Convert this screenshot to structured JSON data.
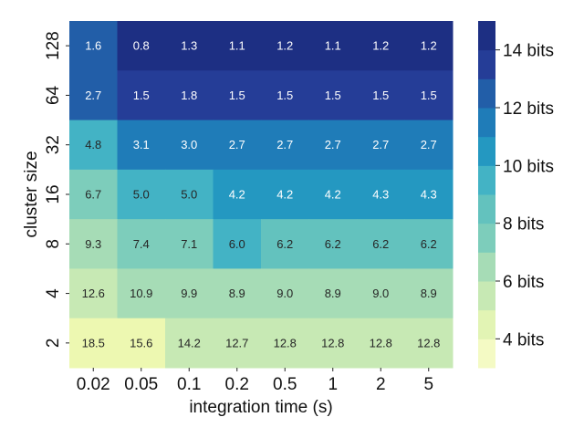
{
  "chart_data": {
    "type": "heatmap",
    "xlabel": "integration time (s)",
    "ylabel": "cluster size",
    "x_categories": [
      "0.02",
      "0.05",
      "0.1",
      "0.2",
      "0.5",
      "1",
      "2",
      "5"
    ],
    "y_categories": [
      "128",
      "64",
      "32",
      "16",
      "8",
      "4",
      "2"
    ],
    "values": [
      [
        1.6,
        0.8,
        1.3,
        1.1,
        1.2,
        1.1,
        1.2,
        1.2
      ],
      [
        2.7,
        1.5,
        1.8,
        1.5,
        1.5,
        1.5,
        1.5,
        1.5
      ],
      [
        4.8,
        3.1,
        3.0,
        2.7,
        2.7,
        2.7,
        2.7,
        2.7
      ],
      [
        6.7,
        5.0,
        5.0,
        4.2,
        4.2,
        4.2,
        4.3,
        4.3
      ],
      [
        9.3,
        7.4,
        7.1,
        6.0,
        6.2,
        6.2,
        6.2,
        6.2
      ],
      [
        12.6,
        10.9,
        9.9,
        8.9,
        9.0,
        8.9,
        9.0,
        8.9
      ],
      [
        18.5,
        15.6,
        14.2,
        12.7,
        12.8,
        12.8,
        12.8,
        12.8
      ]
    ],
    "cell_colors": [
      [
        "#225ea8",
        "#1d2f83",
        "#1d2f83",
        "#1d2f83",
        "#1d2f83",
        "#1d2f83",
        "#1d2f83",
        "#1d2f83"
      ],
      [
        "#225ea8",
        "#253d97",
        "#253d97",
        "#253d97",
        "#253d97",
        "#253d97",
        "#253d97",
        "#253d97"
      ],
      [
        "#43b3c5",
        "#1f7cb8",
        "#1f7cb8",
        "#1f7cb8",
        "#1f7cb8",
        "#1f7cb8",
        "#1f7cb8",
        "#1f7cb8"
      ],
      [
        "#7dcdbb",
        "#43b3c5",
        "#43b3c5",
        "#2498c1",
        "#2498c1",
        "#2498c1",
        "#2498c1",
        "#2498c1"
      ],
      [
        "#a6dcb6",
        "#7dcdbb",
        "#7dcdbb",
        "#43b3c5",
        "#63c2be",
        "#63c2be",
        "#63c2be",
        "#63c2be"
      ],
      [
        "#c7e9b4",
        "#a6dcb6",
        "#a6dcb6",
        "#a6dcb6",
        "#a6dcb6",
        "#a6dcb6",
        "#a6dcb6",
        "#a6dcb6"
      ],
      [
        "#edf8b1",
        "#edf8b1",
        "#c7e9b4",
        "#c7e9b4",
        "#c7e9b4",
        "#c7e9b4",
        "#c7e9b4",
        "#c7e9b4"
      ]
    ],
    "colorbar": {
      "range": [
        3,
        15
      ],
      "ticks": [
        {
          "value": 4,
          "label": "4 bits"
        },
        {
          "value": 6,
          "label": "6 bits"
        },
        {
          "value": 8,
          "label": "8 bits"
        },
        {
          "value": 10,
          "label": "10 bits"
        },
        {
          "value": 12,
          "label": "12 bits"
        },
        {
          "value": 14,
          "label": "14 bits"
        }
      ],
      "colors": [
        "#f4fac4",
        "#e2f4b4",
        "#c7e9b4",
        "#a6dcb6",
        "#7dcdbb",
        "#63c2be",
        "#43b3c5",
        "#2498c1",
        "#1f7cb8",
        "#225ea8",
        "#253d97",
        "#1d2f83"
      ]
    },
    "grid": false
  }
}
